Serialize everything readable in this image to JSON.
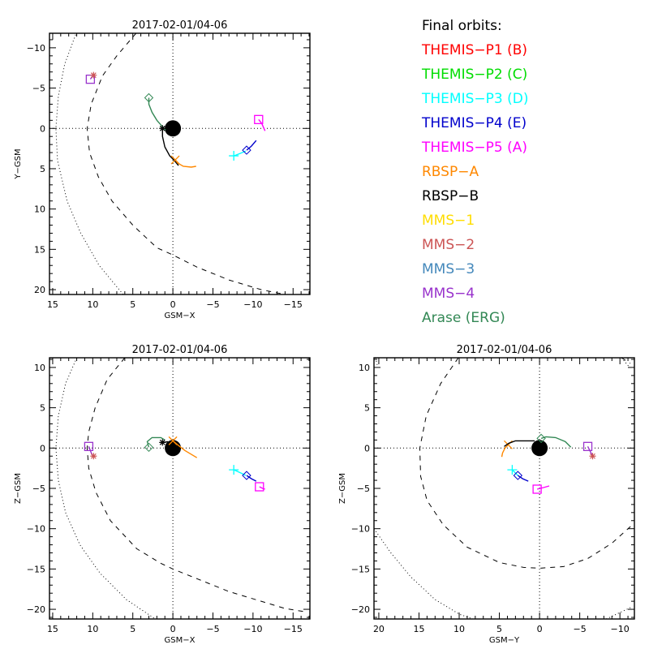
{
  "legend": {
    "title": "Final orbits:",
    "items": [
      {
        "label": "THEMIS-P1 (B)",
        "color": "#ff0000"
      },
      {
        "label": "THEMIS-P2 (C)",
        "color": "#00dd00"
      },
      {
        "label": "THEMIS-P3 (D)",
        "color": "#00ffff"
      },
      {
        "label": "THEMIS-P4 (E)",
        "color": "#0000cc"
      },
      {
        "label": "THEMIS-P5 (A)",
        "color": "#ff00ff"
      },
      {
        "label": "RBSP-A",
        "color": "#ff8800"
      },
      {
        "label": "RBSP-B",
        "color": "#000000"
      },
      {
        "label": "MMS-1",
        "color": "#ffdd00"
      },
      {
        "label": "MMS-2",
        "color": "#cc5555"
      },
      {
        "label": "MMS-3",
        "color": "#4488bb"
      },
      {
        "label": "MMS-4",
        "color": "#9933cc"
      },
      {
        "label": "Arase (ERG)",
        "color": "#338855"
      }
    ]
  },
  "chart_data": [
    {
      "type": "line",
      "title": "2017-02-01/04-06",
      "xlabel": "GSM-X",
      "ylabel": "Y-GSM",
      "xlim": [
        15.4,
        -17.1
      ],
      "ylim": [
        -11.8,
        20.6
      ],
      "xticks": [
        15,
        10,
        5,
        0,
        -5,
        -10,
        -15
      ],
      "yticks": [
        -10,
        -5,
        0,
        5,
        10,
        15,
        20
      ],
      "boundaries": [
        {
          "name": "bow-shock",
          "style": "dotted",
          "points": [
            [
              12.0,
              -12
            ],
            [
              13.5,
              -8
            ],
            [
              14.3,
              -4
            ],
            [
              14.6,
              0
            ],
            [
              14.4,
              4
            ],
            [
              13.2,
              9
            ],
            [
              11.5,
              13
            ],
            [
              9.2,
              17
            ],
            [
              6.2,
              20.6
            ]
          ]
        },
        {
          "name": "magnetopause",
          "style": "dashed",
          "points": [
            [
              4.6,
              -11.8
            ],
            [
              7.0,
              -9
            ],
            [
              8.8,
              -6.5
            ],
            [
              10.2,
              -3
            ],
            [
              10.7,
              0
            ],
            [
              10.4,
              3
            ],
            [
              9.3,
              6
            ],
            [
              7.6,
              9
            ],
            [
              5.0,
              12
            ],
            [
              2.0,
              14.8
            ],
            [
              0,
              15.7
            ],
            [
              -3,
              17.2
            ],
            [
              -7,
              18.8
            ],
            [
              -11,
              20.0
            ],
            [
              -14,
              20.6
            ]
          ]
        }
      ],
      "series": [
        {
          "name": "Arase (ERG)",
          "color": "#338855",
          "marker": "diamond",
          "points": [
            [
              3.0,
              -3.8
            ],
            [
              3.0,
              -3
            ],
            [
              2.6,
              -2
            ],
            [
              2.0,
              -1
            ],
            [
              1.2,
              -0.1
            ],
            [
              0.9,
              0.2
            ]
          ]
        },
        {
          "name": "RBSP-B",
          "color": "#000000",
          "marker": "asterisk",
          "points": [
            [
              1.3,
              0
            ],
            [
              1.3,
              1
            ],
            [
              1.0,
              2.3
            ],
            [
              0.4,
              3.4
            ],
            [
              -0.2,
              4
            ],
            [
              -0.7,
              4.6
            ]
          ]
        },
        {
          "name": "RBSP-A",
          "color": "#ff8800",
          "marker": "x",
          "points": [
            [
              -0.3,
              3.9
            ],
            [
              -0.6,
              4.3
            ],
            [
              -1.3,
              4.7
            ],
            [
              -2.3,
              4.8
            ],
            [
              -2.9,
              4.7
            ]
          ]
        },
        {
          "name": "THEMIS-P3 (D)",
          "color": "#00ffff",
          "marker": "plus",
          "points": [
            [
              -7.6,
              3.4
            ],
            [
              -8.4,
              3.1
            ],
            [
              -9.1,
              2.8
            ]
          ]
        },
        {
          "name": "THEMIS-P4 (E)",
          "color": "#0000cc",
          "marker": "diamond",
          "points": [
            [
              -9.2,
              2.7
            ],
            [
              -9.8,
              2.2
            ],
            [
              -10.4,
              1.5
            ]
          ]
        },
        {
          "name": "THEMIS-P5 (A)",
          "color": "#ff00ff",
          "marker": "square",
          "points": [
            [
              -10.7,
              -1.1
            ],
            [
              -11.1,
              -0.6
            ],
            [
              -11.5,
              0.3
            ]
          ]
        },
        {
          "name": "MMS-4",
          "color": "#9933cc",
          "marker": "square",
          "points": [
            [
              10.3,
              -6.1
            ],
            [
              9.9,
              -6.6
            ]
          ]
        },
        {
          "name": "MMS-2",
          "color": "#cc5555",
          "marker": "asterisk",
          "points": [
            [
              9.9,
              -6.6
            ]
          ]
        }
      ]
    },
    {
      "type": "line",
      "title": "2017-02-01/04-06",
      "xlabel": "GSM-X",
      "ylabel": "Z-GSM",
      "xlim": [
        15.4,
        -17.1
      ],
      "ylim": [
        11.2,
        -21.2
      ],
      "xticks": [
        15,
        10,
        5,
        0,
        -5,
        -10,
        -15
      ],
      "yticks": [
        10,
        5,
        0,
        -5,
        -10,
        -15,
        -20
      ],
      "boundaries": [
        {
          "name": "bow-shock",
          "style": "dotted",
          "points": [
            [
              12.0,
              11.2
            ],
            [
              13.4,
              8
            ],
            [
              14.3,
              4
            ],
            [
              14.6,
              0
            ],
            [
              14.3,
              -4
            ],
            [
              13.4,
              -8
            ],
            [
              11.6,
              -12
            ],
            [
              9.1,
              -15.5
            ],
            [
              5.8,
              -18.8
            ],
            [
              2.2,
              -21.2
            ]
          ]
        },
        {
          "name": "magnetopause",
          "style": "dashed",
          "points": [
            [
              6.0,
              11.2
            ],
            [
              8.2,
              8.5
            ],
            [
              9.7,
              5
            ],
            [
              10.5,
              2
            ],
            [
              10.7,
              0
            ],
            [
              10.5,
              -2.5
            ],
            [
              9.6,
              -5.5
            ],
            [
              7.8,
              -9
            ],
            [
              4.5,
              -12.5
            ],
            [
              1.5,
              -14.3
            ],
            [
              0,
              -15
            ],
            [
              -3,
              -16.2
            ],
            [
              -7,
              -17.8
            ],
            [
              -11,
              -19
            ],
            [
              -14,
              -19.9
            ],
            [
              -16.5,
              -20.3
            ]
          ]
        }
      ],
      "series": [
        {
          "name": "Arase (ERG)",
          "color": "#338855",
          "marker": "diamond",
          "points": [
            [
              3.0,
              0.1
            ],
            [
              3.2,
              0.8
            ],
            [
              2.6,
              1.3
            ],
            [
              1.5,
              1.3
            ],
            [
              1.0,
              1.0
            ]
          ]
        },
        {
          "name": "RBSP-B",
          "color": "#000000",
          "marker": "asterisk",
          "points": [
            [
              1.3,
              0.7
            ],
            [
              0.6,
              0.8
            ]
          ]
        },
        {
          "name": "RBSP-A",
          "color": "#ff8800",
          "marker": "x",
          "points": [
            [
              0,
              0.9
            ],
            [
              -0.6,
              0.4
            ],
            [
              -1.5,
              -0.3
            ],
            [
              -3.0,
              -1.2
            ]
          ]
        },
        {
          "name": "THEMIS-P3 (D)",
          "color": "#00ffff",
          "marker": "plus",
          "points": [
            [
              -7.6,
              -2.7
            ],
            [
              -8.5,
              -3.1
            ],
            [
              -9.1,
              -3.4
            ]
          ]
        },
        {
          "name": "THEMIS-P4 (E)",
          "color": "#0000cc",
          "marker": "diamond",
          "points": [
            [
              -9.2,
              -3.4
            ],
            [
              -9.8,
              -3.8
            ],
            [
              -10.4,
              -4.1
            ]
          ]
        },
        {
          "name": "THEMIS-P5 (A)",
          "color": "#ff00ff",
          "marker": "square",
          "points": [
            [
              -10.8,
              -4.8
            ],
            [
              -11.2,
              -5.0
            ],
            [
              -11.5,
              -5.1
            ]
          ]
        },
        {
          "name": "MMS-4",
          "color": "#9933cc",
          "marker": "square",
          "points": [
            [
              10.5,
              0.2
            ],
            [
              10.1,
              -0.8
            ],
            [
              9.9,
              -1.0
            ]
          ]
        },
        {
          "name": "MMS-2",
          "color": "#cc5555",
          "marker": "asterisk",
          "points": [
            [
              9.9,
              -1.0
            ]
          ]
        }
      ]
    },
    {
      "type": "line",
      "title": "2017-02-01/04-06",
      "xlabel": "GSM-Y",
      "ylabel": "Z-GSM",
      "xlim": [
        20.6,
        -11.8
      ],
      "ylim": [
        11.2,
        -21.2
      ],
      "xticks": [
        20,
        15,
        10,
        5,
        0,
        -5,
        -10
      ],
      "yticks": [
        10,
        5,
        0,
        -5,
        -10,
        -15,
        -20
      ],
      "boundaries": [
        {
          "name": "bow-shock-left",
          "style": "dotted",
          "points": [
            [
              20.6,
              -10
            ],
            [
              18.5,
              -13
            ],
            [
              16,
              -16
            ],
            [
              13,
              -18.8
            ],
            [
              10,
              -20.6
            ],
            [
              8.3,
              -21.2
            ]
          ]
        },
        {
          "name": "bow-shock-right",
          "style": "dotted",
          "points": [
            [
              -8.3,
              -21.2
            ],
            [
              -10,
              -20.4
            ],
            [
              -11.5,
              -19.7
            ]
          ]
        },
        {
          "name": "bow-shock-topleft",
          "style": "dotted",
          "points": [
            [
              20.4,
              11.2
            ],
            [
              20.2,
              10.3
            ]
          ]
        },
        {
          "name": "bow-shock-topright",
          "style": "dotted",
          "points": [
            [
              -10.2,
              11.2
            ],
            [
              -11.2,
              10.0
            ]
          ]
        },
        {
          "name": "magnetopause",
          "style": "dashed",
          "points": [
            [
              10.1,
              11.2
            ],
            [
              12.3,
              8
            ],
            [
              14.1,
              4
            ],
            [
              14.9,
              0
            ],
            [
              14.8,
              -3.5
            ],
            [
              14.0,
              -6.5
            ],
            [
              12.0,
              -9.5
            ],
            [
              9,
              -12.3
            ],
            [
              5,
              -14.2
            ],
            [
              2,
              -14.8
            ],
            [
              0,
              -14.9
            ],
            [
              -3,
              -14.7
            ],
            [
              -6,
              -13.7
            ],
            [
              -9,
              -11.8
            ],
            [
              -11.8,
              -9.3
            ]
          ]
        },
        {
          "name": "magnetopause-topright",
          "style": "dashed",
          "points": [
            [
              -10.2,
              11.2
            ],
            [
              -11.3,
              10.5
            ]
          ]
        }
      ],
      "series": [
        {
          "name": "RBSP-A",
          "color": "#ff8800",
          "marker": "x",
          "points": [
            [
              3.9,
              0.4
            ],
            [
              4.3,
              0
            ],
            [
              4.6,
              -0.6
            ],
            [
              4.7,
              -1.1
            ]
          ]
        },
        {
          "name": "RBSP-B",
          "color": "#000000",
          "marker": "none",
          "points": [
            [
              4.4,
              0.2
            ],
            [
              3.8,
              0.6
            ],
            [
              3.0,
              0.9
            ],
            [
              1.5,
              0.9
            ],
            [
              0.6,
              0.9
            ]
          ]
        },
        {
          "name": "Arase (ERG)",
          "color": "#338855",
          "marker": "diamond",
          "points": [
            [
              -0.2,
              1.2
            ],
            [
              -0.8,
              1.4
            ],
            [
              -2.0,
              1.3
            ],
            [
              -3.2,
              0.8
            ],
            [
              -3.9,
              0.1
            ]
          ]
        },
        {
          "name": "THEMIS-P3 (D)",
          "color": "#00ffff",
          "marker": "plus",
          "points": [
            [
              3.4,
              -2.7
            ],
            [
              3.0,
              -3.1
            ],
            [
              2.7,
              -3.4
            ]
          ]
        },
        {
          "name": "THEMIS-P4 (E)",
          "color": "#0000cc",
          "marker": "diamond",
          "points": [
            [
              2.7,
              -3.4
            ],
            [
              2.1,
              -3.8
            ],
            [
              1.4,
              -4.1
            ]
          ]
        },
        {
          "name": "THEMIS-P5 (A)",
          "color": "#ff00ff",
          "marker": "square",
          "points": [
            [
              0.3,
              -5.1
            ],
            [
              -0.5,
              -4.9
            ],
            [
              -1.2,
              -4.7
            ]
          ]
        },
        {
          "name": "MMS-4",
          "color": "#9933cc",
          "marker": "square",
          "points": [
            [
              -6.0,
              0.2
            ],
            [
              -6.4,
              -0.6
            ],
            [
              -6.6,
              -1.0
            ]
          ]
        },
        {
          "name": "MMS-2",
          "color": "#cc5555",
          "marker": "asterisk",
          "points": [
            [
              -6.6,
              -1.0
            ]
          ]
        }
      ]
    }
  ]
}
